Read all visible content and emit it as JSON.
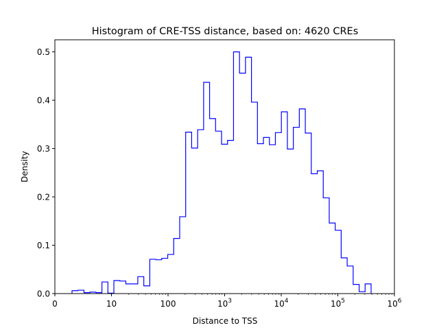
{
  "chart_data": {
    "type": "histogram",
    "title": "Histogram of CRE-TSS distance, based on: 4620 CREs",
    "xlabel": "Distance to TSS",
    "ylabel": "Density",
    "xscale": "log",
    "xlim_log10": [
      0,
      6
    ],
    "ylim": [
      0,
      0.525
    ],
    "x_ticks": [
      {
        "pos": 0,
        "label": "0",
        "exp": ""
      },
      {
        "pos": 1,
        "label": "10",
        "exp": ""
      },
      {
        "pos": 2,
        "label": "100",
        "exp": ""
      },
      {
        "pos": 3,
        "label": "10",
        "exp": "3"
      },
      {
        "pos": 4,
        "label": "10",
        "exp": "4"
      },
      {
        "pos": 5,
        "label": "10",
        "exp": "5"
      },
      {
        "pos": 6,
        "label": "10",
        "exp": "6"
      }
    ],
    "y_ticks": [
      {
        "value": 0.0,
        "label": "0.0"
      },
      {
        "value": 0.1,
        "label": "0.1"
      },
      {
        "value": 0.2,
        "label": "0.2"
      },
      {
        "value": 0.3,
        "label": "0.3"
      },
      {
        "value": 0.4,
        "label": "0.4"
      },
      {
        "value": 0.5,
        "label": "0.5"
      }
    ],
    "bin_range_log10": [
      0.303,
      5.588
    ],
    "density": [
      0.006,
      0.007,
      0.002,
      0.003,
      0.002,
      0.024,
      0.001,
      0.027,
      0.026,
      0.02,
      0.02,
      0.035,
      0.016,
      0.071,
      0.07,
      0.073,
      0.081,
      0.114,
      0.159,
      0.334,
      0.301,
      0.339,
      0.437,
      0.362,
      0.336,
      0.309,
      0.317,
      0.5,
      0.456,
      0.489,
      0.396,
      0.31,
      0.323,
      0.308,
      0.333,
      0.376,
      0.299,
      0.344,
      0.382,
      0.332,
      0.248,
      0.254,
      0.198,
      0.146,
      0.131,
      0.074,
      0.057,
      0.019,
      0.004,
      0.02
    ],
    "line_color": "#0000ff",
    "grid": false
  }
}
